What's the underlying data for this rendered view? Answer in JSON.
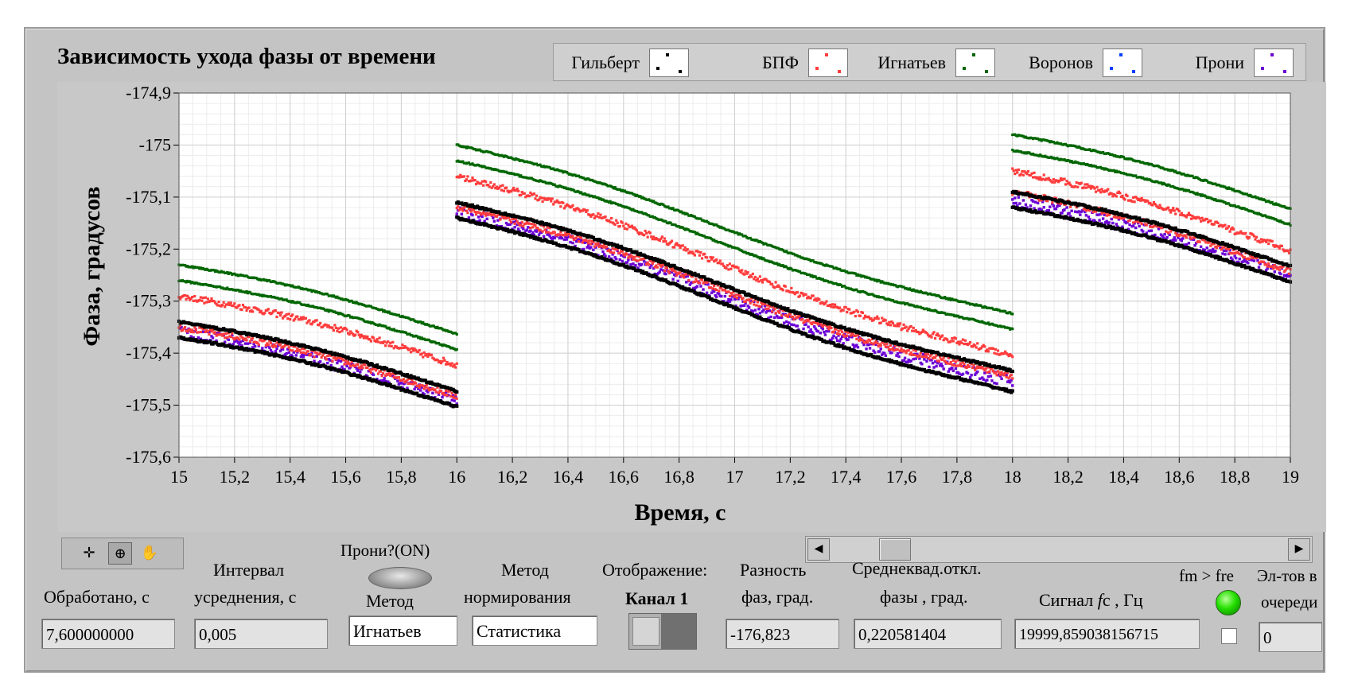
{
  "chart": {
    "title": "Зависимость ухода фазы от времени",
    "xlabel": "Время, с",
    "ylabel": "Фаза, градусов"
  },
  "legend": [
    {
      "label": "Гильберт",
      "color": "#000000"
    },
    {
      "label": "БПФ",
      "color": "#ff3c3c"
    },
    {
      "label": "Игнатьев",
      "color": "#006600"
    },
    {
      "label": "Воронов",
      "color": "#0040ff"
    },
    {
      "label": "Прони",
      "color": "#6b00d6"
    }
  ],
  "chart_data": {
    "type": "scatter",
    "xlim": [
      15,
      19
    ],
    "ylim": [
      -175.6,
      -174.9
    ],
    "x_ticks": [
      "15",
      "15,2",
      "15,4",
      "15,6",
      "15,8",
      "16",
      "16,2",
      "16,4",
      "16,6",
      "16,8",
      "17",
      "17,2",
      "17,4",
      "17,6",
      "17,8",
      "18",
      "18,2",
      "18,4",
      "18,6",
      "18,8",
      "19"
    ],
    "y_ticks": [
      "-174,9",
      "-175",
      "-175,1",
      "-175,2",
      "-175,3",
      "-175,4",
      "-175,5",
      "-175,6"
    ],
    "grid": true,
    "legend_position": "top",
    "segments": [
      {
        "x": [
          15,
          16
        ],
        "series": {
          "Игнатьев": [
            [
              -175.23,
              -175.36
            ],
            [
              -175.26,
              -175.39
            ]
          ],
          "БПФ": [
            [
              -175.29,
              -175.42
            ],
            [
              -175.35,
              -175.48
            ]
          ],
          "Гильберт": [
            [
              -175.34,
              -175.47
            ],
            [
              -175.37,
              -175.5
            ]
          ],
          "Прони": [
            [
              -175.36,
              -175.49
            ]
          ]
        }
      },
      {
        "x": [
          16,
          18
        ],
        "series": {
          "Игнатьев": [
            [
              -175.0,
              -175.33
            ],
            [
              -175.03,
              -175.36
            ]
          ],
          "БПФ": [
            [
              -175.06,
              -175.41
            ],
            [
              -175.12,
              -175.45
            ]
          ],
          "Гильберт": [
            [
              -175.11,
              -175.44
            ],
            [
              -175.14,
              -175.48
            ]
          ],
          "Прони": [
            [
              -175.13,
              -175.46
            ]
          ]
        }
      },
      {
        "x": [
          18,
          19
        ],
        "series": {
          "Игнатьев": [
            [
              -174.98,
              -175.12
            ],
            [
              -175.01,
              -175.15
            ]
          ],
          "БПФ": [
            [
              -175.05,
              -175.2
            ],
            [
              -175.09,
              -175.24
            ]
          ],
          "Гильберт": [
            [
              -175.09,
              -175.23
            ],
            [
              -175.12,
              -175.26
            ]
          ],
          "Прони": [
            [
              -175.11,
              -175.25
            ]
          ]
        }
      }
    ]
  },
  "toolbar": {
    "icons": [
      "crosshair-icon",
      "zoom-icon",
      "hand-icon"
    ]
  },
  "controls": {
    "processed_label": "Обработано, с",
    "processed_value": "7,600000000",
    "interval_label_1": "Интервал",
    "interval_label_2": "усреднения, с",
    "interval_value": "0,005",
    "prony_label": "Прони?(ON)",
    "method_label": "Метод",
    "method_value": "Игнатьев",
    "norm_label_1": "Метод",
    "norm_label_2": "нормирования",
    "norm_value": "Статистика",
    "display_label": "Отображение:",
    "channel_label": "Канал 1",
    "phase_diff_label_1": "Разность",
    "phase_diff_label_2": "фаз, град.",
    "phase_diff_value": "-176,823",
    "rms_label_1": "Среднеквад.откл.",
    "rms_label_2": "фазы , град.",
    "rms_value": "0,220581404",
    "signal_label_1": "Сигнал ",
    "signal_label_f": "f",
    "signal_label_2": "c , Гц",
    "signal_value": "19999,859038156715",
    "fm_label": "fm > fre",
    "queue_label_1": "Эл-тов в",
    "queue_label_2": "очереди",
    "queue_value": "0"
  }
}
